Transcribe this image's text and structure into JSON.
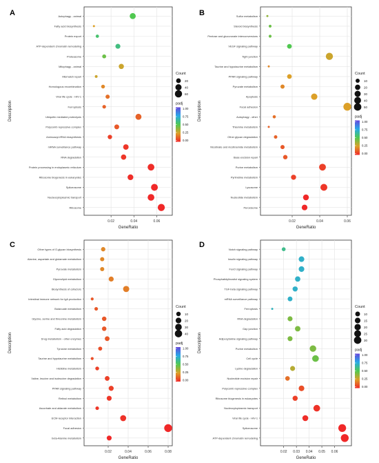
{
  "chart_data": [
    {
      "panel": "A",
      "type": "scatter",
      "xlabel": "GeneRatio",
      "ylabel": "Description",
      "xlim": [
        0,
        0.07
      ],
      "xticks": [
        0.02,
        0.04,
        0.06
      ],
      "tick_labels": [
        "0.02",
        "0.04",
        "0.06"
      ],
      "size_legend": {
        "title": "Count",
        "values": [
          20,
          40,
          60
        ],
        "labels": [
          "20",
          "40",
          "60"
        ],
        "range": [
          5,
          75
        ]
      },
      "color_legend": {
        "title": "padj",
        "ticks": [
          "1.00",
          "0.75",
          "0.50",
          "0.25",
          "0.00"
        ]
      },
      "points": [
        {
          "label": "Autophagy - animal",
          "x": 0.039,
          "count": 38,
          "padj": 0.5
        },
        {
          "label": "Fatty acid biosynthesis",
          "x": 0.005,
          "count": 5,
          "padj": 0.75
        },
        {
          "label": "Protein export",
          "x": 0.008,
          "count": 8,
          "padj": 0.45
        },
        {
          "label": "ATP-dependent chromatin remodeling",
          "x": 0.026,
          "count": 22,
          "padj": 0.42
        },
        {
          "label": "Proteasome",
          "x": 0.014,
          "count": 12,
          "padj": 0.55
        },
        {
          "label": "Mitophagy - animal",
          "x": 0.029,
          "count": 25,
          "padj": 0.72
        },
        {
          "label": "Mismatch repair",
          "x": 0.007,
          "count": 6,
          "padj": 0.72
        },
        {
          "label": "Homologous recombination",
          "x": 0.013,
          "count": 11,
          "padj": 0.8
        },
        {
          "label": "Viral life cycle - HIV-1",
          "x": 0.017,
          "count": 14,
          "padj": 0.85
        },
        {
          "label": "Ferroptosis",
          "x": 0.014,
          "count": 10,
          "padj": 0.88
        },
        {
          "label": "Ubiquitin mediated proteolysis",
          "x": 0.044,
          "count": 38,
          "padj": 0.88
        },
        {
          "label": "Polycomb repressive complex",
          "x": 0.025,
          "count": 21,
          "padj": 0.9
        },
        {
          "label": "Aminoacyl-tRNA biosynthesis",
          "x": 0.019,
          "count": 16,
          "padj": 0.95
        },
        {
          "label": "mRNA surveillance pathway",
          "x": 0.033,
          "count": 29,
          "padj": 0.97
        },
        {
          "label": "RNA degradation",
          "x": 0.031,
          "count": 27,
          "padj": 0.97
        },
        {
          "label": "Protein processing in endoplasmic reticulum",
          "x": 0.055,
          "count": 50,
          "padj": 0.99
        },
        {
          "label": "Ribosome biogenesis in eukaryotes",
          "x": 0.037,
          "count": 33,
          "padj": 0.99
        },
        {
          "label": "Spliceosome",
          "x": 0.058,
          "count": 52,
          "padj": 1.0
        },
        {
          "label": "Nucleocytoplasmic transport",
          "x": 0.055,
          "count": 49,
          "padj": 1.0
        },
        {
          "label": "Ribosome",
          "x": 0.064,
          "count": 58,
          "padj": 1.0
        }
      ]
    },
    {
      "panel": "B",
      "type": "scatter",
      "xlabel": "GeneRatio",
      "ylabel": "Description",
      "xlim": [
        0,
        0.06
      ],
      "xticks": [
        0.02,
        0.04,
        0.06
      ],
      "tick_labels": [
        "0.02",
        "0.04",
        "0.06"
      ],
      "size_legend": {
        "title": "Count",
        "values": [
          10,
          20,
          30,
          40,
          50
        ],
        "labels": [
          "10",
          "20",
          "30",
          "40",
          "50"
        ],
        "range": [
          3,
          58
        ]
      },
      "color_legend": {
        "title": "padj",
        "ticks": [
          "1.00",
          "0.75",
          "0.50",
          "0.25",
          "0.00"
        ]
      },
      "points": [
        {
          "label": "Sulfur metabolism",
          "x": 0.002,
          "count": 3,
          "padj": 0.62
        },
        {
          "label": "Steroid biosynthesis",
          "x": 0.004,
          "count": 4,
          "padj": 0.55
        },
        {
          "label": "Pentose and glucuronate interconversions",
          "x": 0.004,
          "count": 4,
          "padj": 0.55
        },
        {
          "label": "VEGF signaling pathway",
          "x": 0.018,
          "count": 14,
          "padj": 0.5
        },
        {
          "label": "Tight junction",
          "x": 0.047,
          "count": 45,
          "padj": 0.72
        },
        {
          "label": "Taurine and hypotaurine metabolism",
          "x": 0.003,
          "count": 3,
          "padj": 0.8
        },
        {
          "label": "PPAR signaling pathway",
          "x": 0.018,
          "count": 14,
          "padj": 0.75
        },
        {
          "label": "Pyruvate metabolism",
          "x": 0.013,
          "count": 10,
          "padj": 0.8
        },
        {
          "label": "Apoptosis",
          "x": 0.036,
          "count": 32,
          "padj": 0.75
        },
        {
          "label": "Focal adhesion",
          "x": 0.06,
          "count": 57,
          "padj": 0.75
        },
        {
          "label": "Autophagy - other",
          "x": 0.007,
          "count": 5,
          "padj": 0.85
        },
        {
          "label": "Thiamine metabolism",
          "x": 0.003,
          "count": 3,
          "padj": 0.88
        },
        {
          "label": "Other glycan degradation",
          "x": 0.008,
          "count": 6,
          "padj": 0.88
        },
        {
          "label": "Nicotinate and nicotinamide metabolism",
          "x": 0.013,
          "count": 10,
          "padj": 0.9
        },
        {
          "label": "Base excision repair",
          "x": 0.015,
          "count": 12,
          "padj": 0.9
        },
        {
          "label": "Purine metabolism",
          "x": 0.042,
          "count": 40,
          "padj": 0.95
        },
        {
          "label": "Pyrimidine metabolism",
          "x": 0.021,
          "count": 18,
          "padj": 0.95
        },
        {
          "label": "Lysosome",
          "x": 0.043,
          "count": 41,
          "padj": 0.97
        },
        {
          "label": "Nucleotide metabolism",
          "x": 0.03,
          "count": 26,
          "padj": 1.0
        },
        {
          "label": "Peroxisome",
          "x": 0.029,
          "count": 24,
          "padj": 1.0
        }
      ]
    },
    {
      "panel": "C",
      "type": "scatter",
      "xlabel": "GeneRatio",
      "ylabel": "Description",
      "xlim": [
        0,
        0.08
      ],
      "xticks": [
        0.02,
        0.04,
        0.06,
        0.08
      ],
      "tick_labels": [
        "0.02",
        "0.04",
        "0.06",
        "0.08"
      ],
      "size_legend": {
        "title": "Count",
        "values": [
          10,
          20,
          30,
          40
        ],
        "labels": [
          "10",
          "20",
          "30",
          "40"
        ],
        "range": [
          2,
          48
        ]
      },
      "color_legend": {
        "title": "padj",
        "ticks": [
          "1.00",
          "0.75",
          "0.50",
          "0.25",
          "0.00"
        ]
      },
      "points": [
        {
          "label": "Other types of O-glycan biosynthesis",
          "x": 0.015,
          "count": 9,
          "padj": 0.8
        },
        {
          "label": "Alanine, aspartate and glutamate metabolism",
          "x": 0.014,
          "count": 8,
          "padj": 0.8
        },
        {
          "label": "Pyruvate metabolism",
          "x": 0.014,
          "count": 8,
          "padj": 0.8
        },
        {
          "label": "Glycerolipid metabolism",
          "x": 0.023,
          "count": 14,
          "padj": 0.82
        },
        {
          "label": "Biosynthesis of cofactors",
          "x": 0.038,
          "count": 25,
          "padj": 0.82
        },
        {
          "label": "Intestinal immune network for IgA production",
          "x": 0.004,
          "count": 3,
          "padj": 0.9
        },
        {
          "label": "Butanoate metabolism",
          "x": 0.008,
          "count": 5,
          "padj": 0.9
        },
        {
          "label": "Glycine, serine and threonine metabolism",
          "x": 0.016,
          "count": 10,
          "padj": 0.9
        },
        {
          "label": "Fatty acid degradation",
          "x": 0.016,
          "count": 10,
          "padj": 0.9
        },
        {
          "label": "Drug metabolism - other enzymes",
          "x": 0.019,
          "count": 12,
          "padj": 0.9
        },
        {
          "label": "Tyrosine metabolism",
          "x": 0.012,
          "count": 7,
          "padj": 0.92
        },
        {
          "label": "Taurine and hypotaurine metabolism",
          "x": 0.004,
          "count": 3,
          "padj": 0.92
        },
        {
          "label": "Histidine metabolism",
          "x": 0.009,
          "count": 6,
          "padj": 0.95
        },
        {
          "label": "Valine, leucine and isoleucine degradation",
          "x": 0.019,
          "count": 12,
          "padj": 0.95
        },
        {
          "label": "PPAR signaling pathway",
          "x": 0.023,
          "count": 14,
          "padj": 0.95
        },
        {
          "label": "Retinol metabolism",
          "x": 0.021,
          "count": 13,
          "padj": 0.97
        },
        {
          "label": "Ascorbate and aldarate metabolism",
          "x": 0.009,
          "count": 5,
          "padj": 0.97
        },
        {
          "label": "ECM-receptor interaction",
          "x": 0.035,
          "count": 23,
          "padj": 0.98
        },
        {
          "label": "Focal adhesion",
          "x": 0.08,
          "count": 48,
          "padj": 1.0
        },
        {
          "label": "beta-Alanine metabolism",
          "x": 0.021,
          "count": 13,
          "padj": 1.0
        }
      ]
    },
    {
      "panel": "D",
      "type": "scatter",
      "xlabel": "GeneRatio",
      "ylabel": "Description",
      "xlim": [
        0.005,
        0.07
      ],
      "xticks": [
        0.02,
        0.03,
        0.04,
        0.05,
        0.06
      ],
      "tick_labels": [
        "0.02",
        "0.03",
        "0.04",
        "0.05",
        "0.06"
      ],
      "size_legend": {
        "title": "Count",
        "values": [
          10,
          15,
          20,
          25,
          30
        ],
        "labels": [
          "10",
          "15",
          "20",
          "25",
          "30"
        ],
        "range": [
          3,
          35
        ]
      },
      "color_legend": {
        "title": "padj",
        "ticks": [
          "1.00",
          "0.75",
          "0.50",
          "0.25",
          "0.00"
        ]
      },
      "points": [
        {
          "label": "Notch signaling pathway",
          "x": 0.02,
          "count": 6,
          "padj": 0.4
        },
        {
          "label": "Insulin signaling pathway",
          "x": 0.034,
          "count": 15,
          "padj": 0.3
        },
        {
          "label": "FoxO signaling pathway",
          "x": 0.034,
          "count": 15,
          "padj": 0.3
        },
        {
          "label": "Phosphatidylinositol signaling system",
          "x": 0.031,
          "count": 13,
          "padj": 0.3
        },
        {
          "label": "TGF-beta signaling pathway",
          "x": 0.029,
          "count": 12,
          "padj": 0.3
        },
        {
          "label": "mRNA surveillance pathway",
          "x": 0.025,
          "count": 10,
          "padj": 0.3
        },
        {
          "label": "Ferroptosis",
          "x": 0.011,
          "count": 3,
          "padj": 0.32
        },
        {
          "label": "RNA degradation",
          "x": 0.025,
          "count": 11,
          "padj": 0.58
        },
        {
          "label": "Gap junction",
          "x": 0.031,
          "count": 14,
          "padj": 0.58
        },
        {
          "label": "Adipocytokine signaling pathway",
          "x": 0.025,
          "count": 11,
          "padj": 0.58
        },
        {
          "label": "Purine metabolism",
          "x": 0.043,
          "count": 22,
          "padj": 0.58
        },
        {
          "label": "Cell cycle",
          "x": 0.045,
          "count": 23,
          "padj": 0.55
        },
        {
          "label": "Lysine degradation",
          "x": 0.027,
          "count": 11,
          "padj": 0.68
        },
        {
          "label": "Nucleotide excision repair",
          "x": 0.023,
          "count": 9,
          "padj": 0.85
        },
        {
          "label": "Polycomb repressive complex",
          "x": 0.034,
          "count": 15,
          "padj": 0.92
        },
        {
          "label": "Ribosome biogenesis in eukaryotes",
          "x": 0.029,
          "count": 12,
          "padj": 0.95
        },
        {
          "label": "Nucleocytoplasmic transport",
          "x": 0.046,
          "count": 23,
          "padj": 0.98
        },
        {
          "label": "Viral life cycle - HIV-1",
          "x": 0.037,
          "count": 17,
          "padj": 0.99
        },
        {
          "label": "Spliceosome",
          "x": 0.066,
          "count": 34,
          "padj": 1.0
        },
        {
          "label": "ATP-dependent chromatin remodeling",
          "x": 0.068,
          "count": 35,
          "padj": 1.0
        }
      ]
    }
  ]
}
